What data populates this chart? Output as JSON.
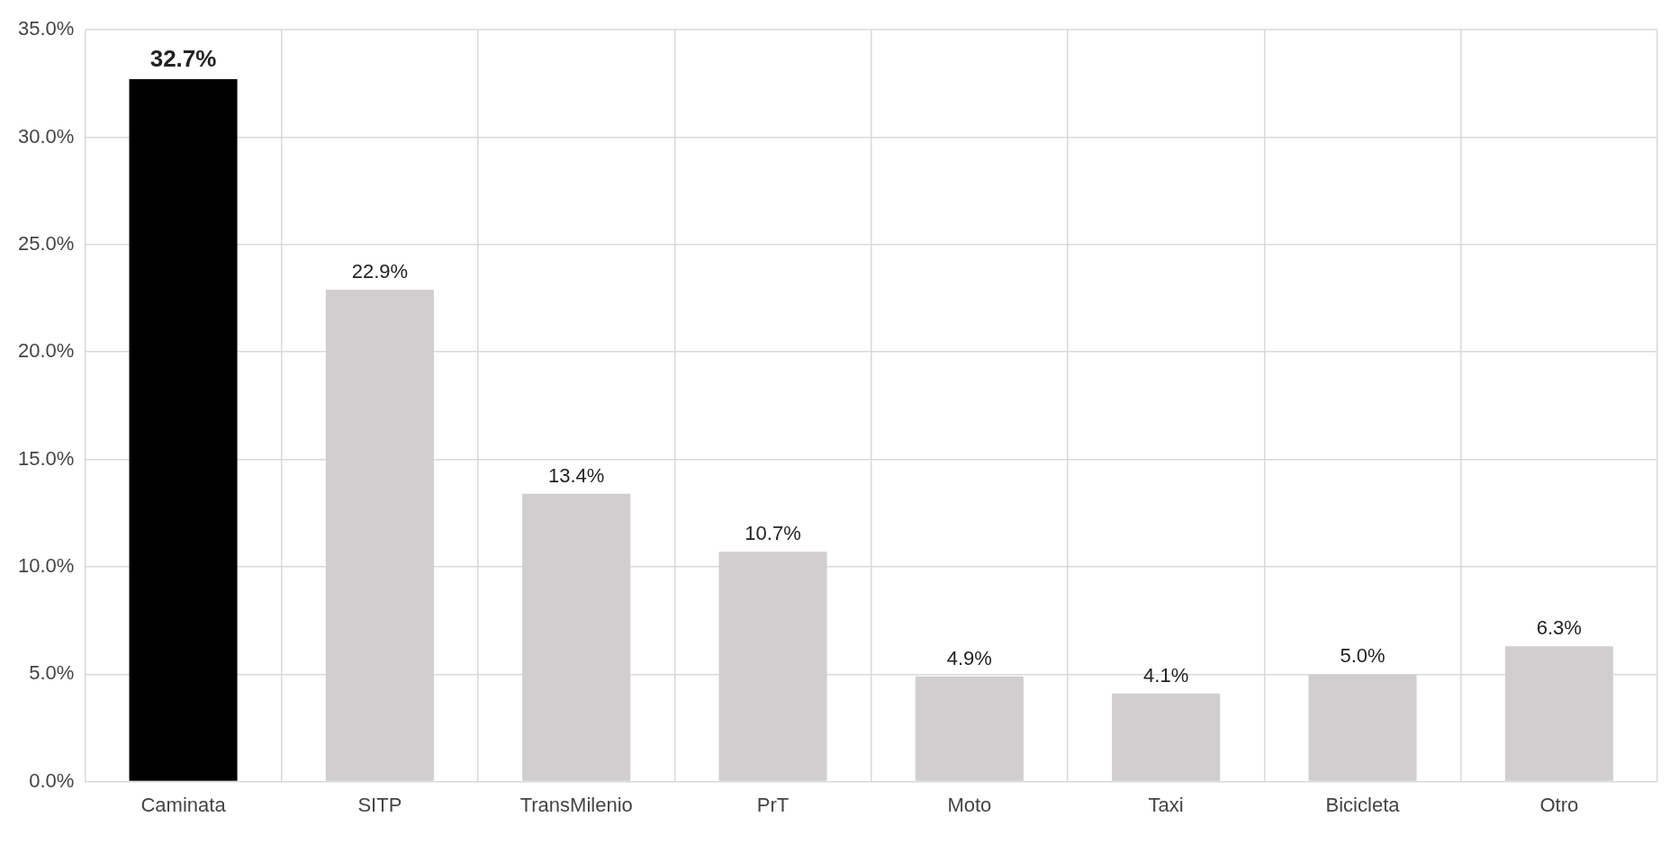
{
  "chart_data": {
    "type": "bar",
    "categories": [
      "Caminata",
      "SITP",
      "TransMilenio",
      "PrT",
      "Moto",
      "Taxi",
      "Bicicleta",
      "Otro"
    ],
    "values": [
      32.7,
      22.9,
      13.4,
      10.7,
      4.9,
      4.1,
      5.0,
      6.3
    ],
    "colors": [
      "#000000",
      "#d0cece",
      "#d0cece",
      "#d0cece",
      "#d0cece",
      "#d0cece",
      "#d0cece",
      "#d0cece"
    ],
    "value_labels": [
      "32.7%",
      "22.9%",
      "13.4%",
      "10.7%",
      "4.9%",
      "4.1%",
      "5.0%",
      "6.3%"
    ],
    "ylim": [
      0,
      35
    ],
    "yticks": [
      {
        "value": 0,
        "label": "0.0%"
      },
      {
        "value": 5,
        "label": "5.0%"
      },
      {
        "value": 10,
        "label": "10.0%"
      },
      {
        "value": 15,
        "label": "15.0%"
      },
      {
        "value": 20,
        "label": "20.0%"
      },
      {
        "value": 25,
        "label": "25.0%"
      },
      {
        "value": 30,
        "label": "30.0%"
      },
      {
        "value": 35,
        "label": "35.0%"
      }
    ],
    "grid": true
  }
}
